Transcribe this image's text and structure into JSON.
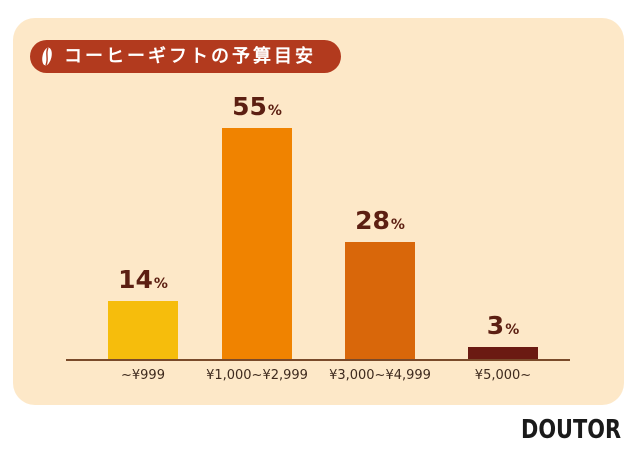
{
  "title": "コーヒーギフトの予算目安",
  "logo": "DOUTOR",
  "colors": {
    "panel_bg": "#fde8c8",
    "title_pill": "#b23a1e",
    "value_text": "#5c1f12",
    "axis": "#7a4a2a"
  },
  "chart_data": {
    "type": "bar",
    "title": "コーヒーギフトの予算目安",
    "xlabel": "",
    "ylabel": "",
    "categories": [
      "~¥999",
      "¥1,000~¥2,999",
      "¥3,000~¥4,999",
      "¥5,000~"
    ],
    "values": [
      14,
      55,
      28,
      3
    ],
    "unit": "%",
    "bar_colors": [
      "#f6bd0c",
      "#f08300",
      "#d9670a",
      "#6b1a12"
    ],
    "ylim": [
      0,
      60
    ],
    "grid": false,
    "legend": null
  },
  "bars": [
    {
      "label": "~¥999",
      "value_num": "14",
      "value_unit": "%"
    },
    {
      "label": "¥1,000~¥2,999",
      "value_num": "55",
      "value_unit": "%"
    },
    {
      "label": "¥3,000~¥4,999",
      "value_num": "28",
      "value_unit": "%"
    },
    {
      "label": "¥5,000~",
      "value_num": "3",
      "value_unit": "%"
    }
  ]
}
